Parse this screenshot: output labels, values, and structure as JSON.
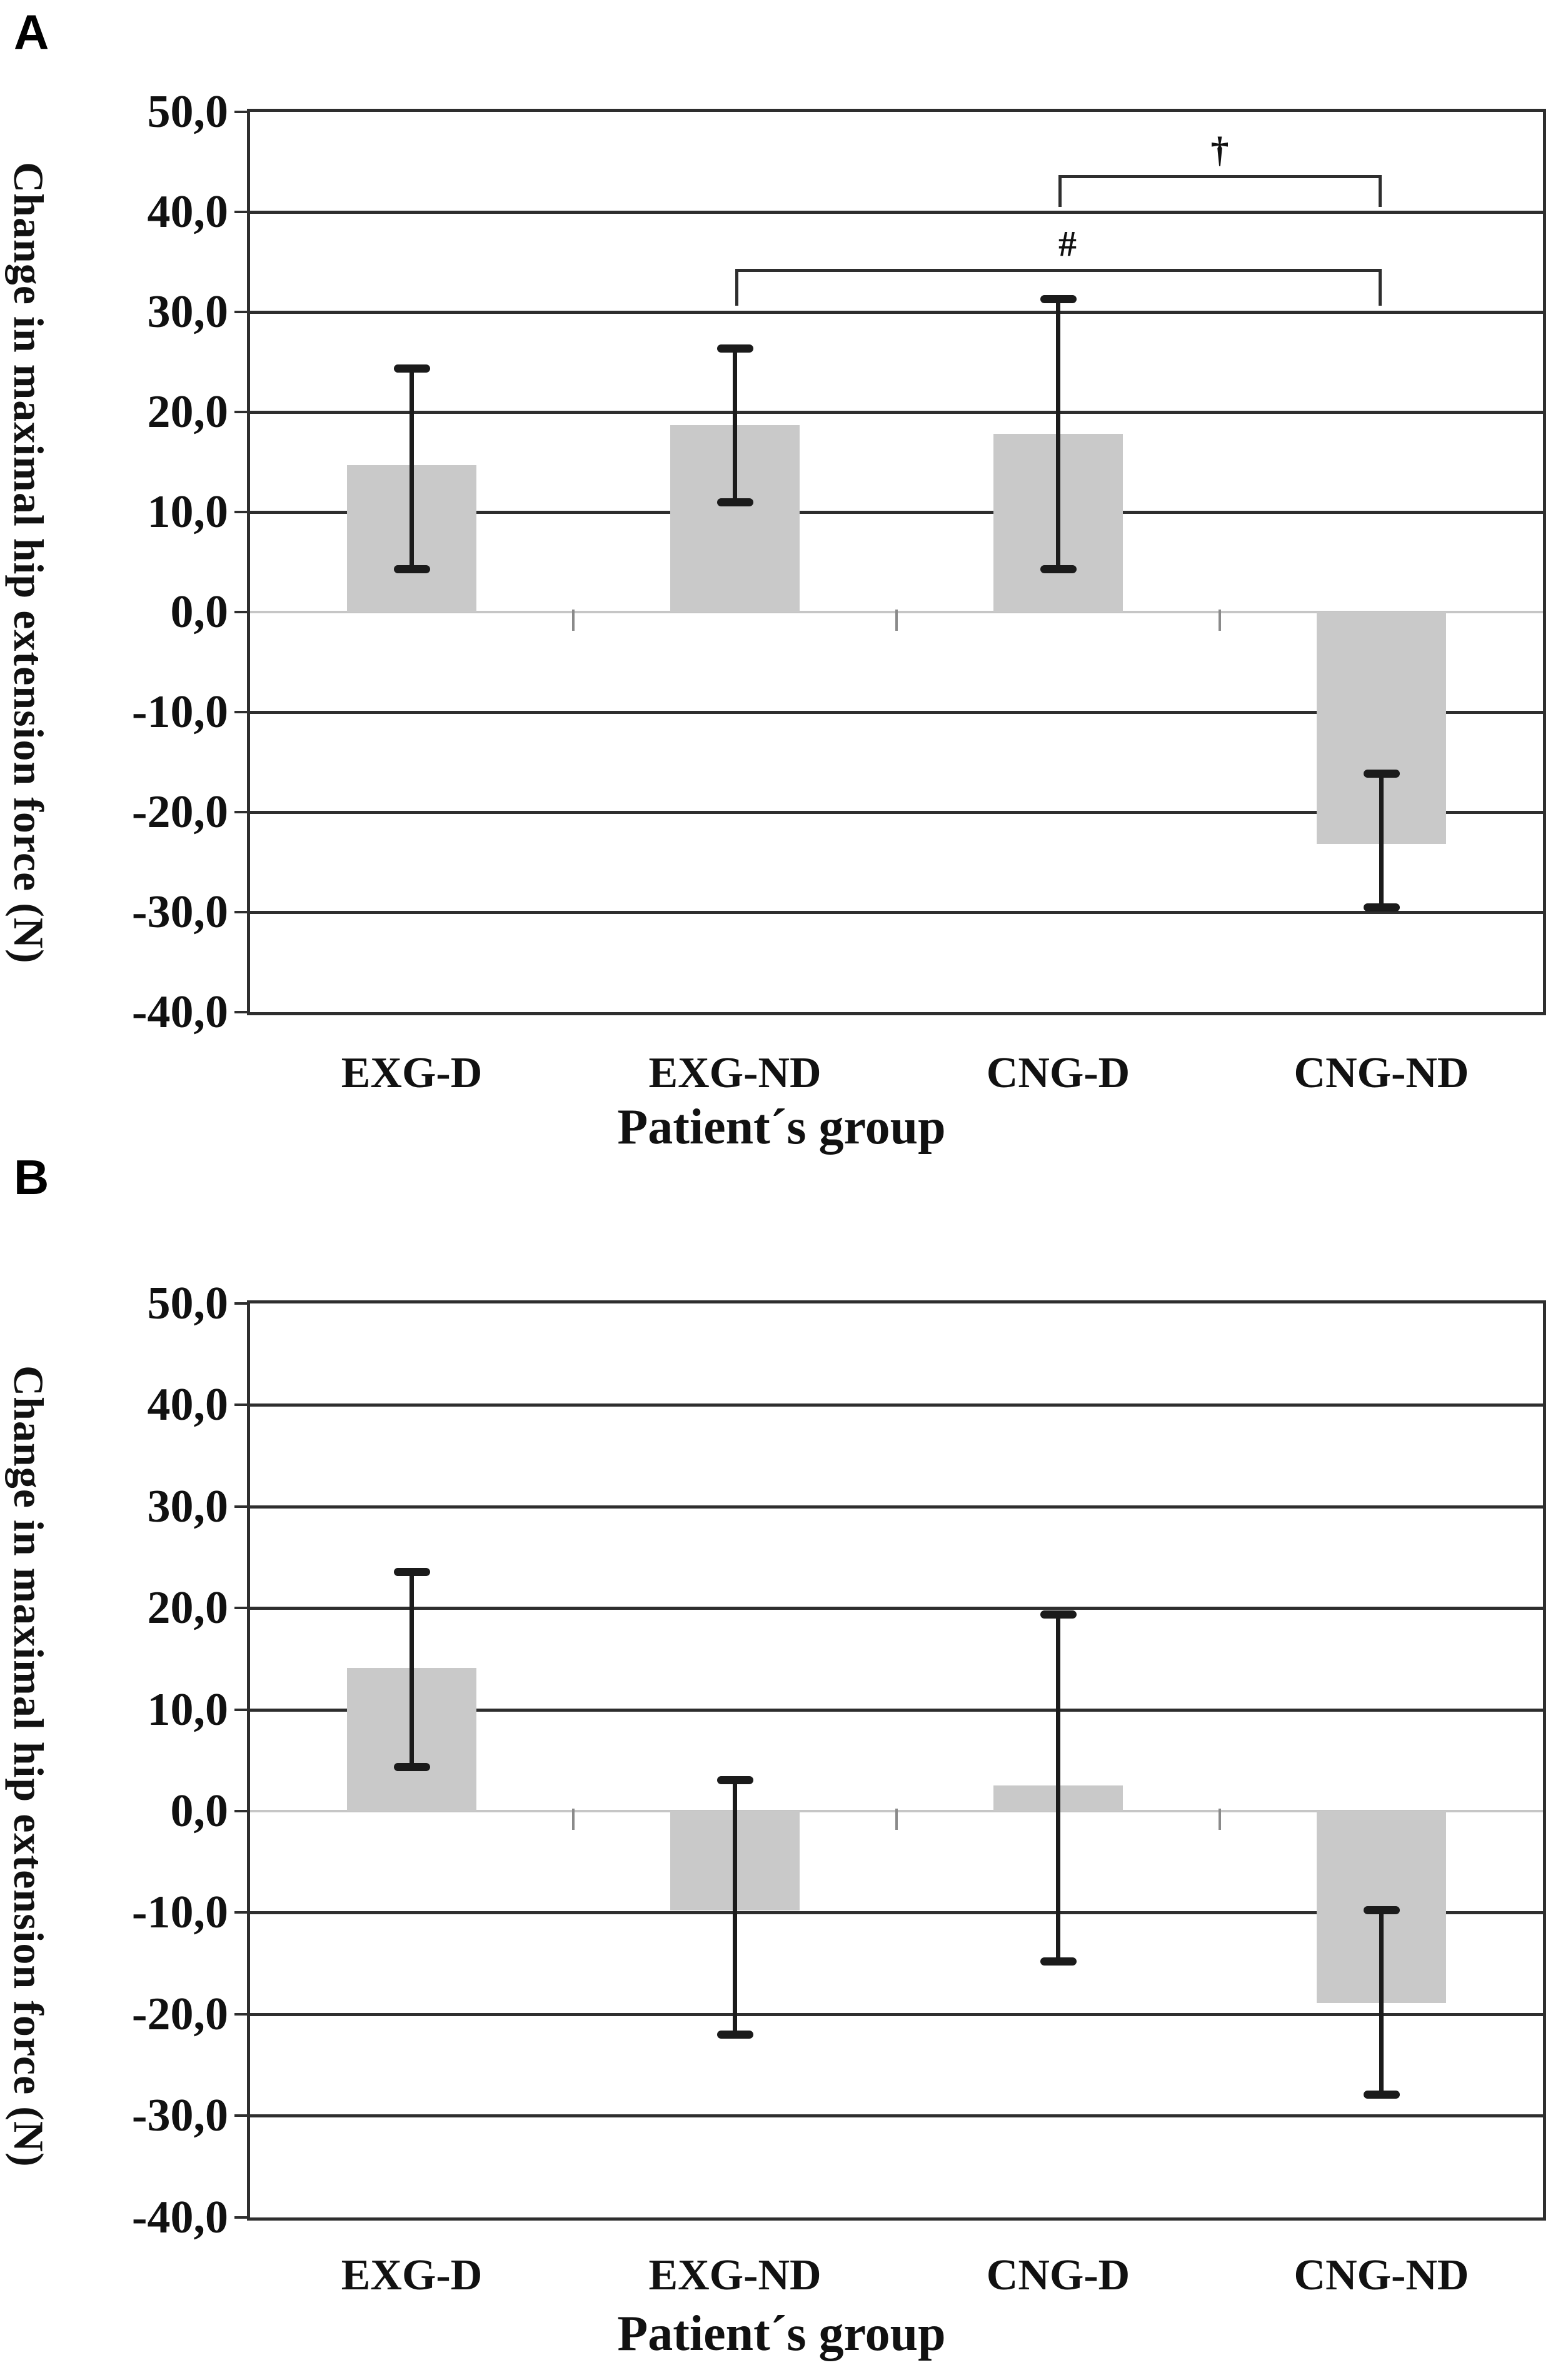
{
  "figure": {
    "background": "#ffffff",
    "bar_color": "#c9c9c9",
    "gridline_color": "#2e2e2e",
    "zero_line_color": "#c6c6c6",
    "error_bar_color": "#1b1b1b"
  },
  "chart_data": [
    {
      "type": "bar",
      "panel_label": "A",
      "title": "",
      "xlabel": "Patient´s group",
      "ylabel": "Change in maximal hip extension force (N)",
      "ylim": [
        -40,
        50
      ],
      "ytick_step": 10,
      "yticks": [
        "50,0",
        "40,0",
        "30,0",
        "20,0",
        "10,0",
        "0,0",
        "-10,0",
        "-20,0",
        "-30,0",
        "-40,0"
      ],
      "grid": true,
      "legend": "none",
      "categories": [
        "EXG-D",
        "EXG-ND",
        "CNG-D",
        "CNG-ND"
      ],
      "values": [
        14.7,
        18.7,
        17.8,
        -23.2
      ],
      "error_high": [
        24.4,
        26.4,
        31.3,
        -16.1
      ],
      "error_low": [
        4.3,
        11.0,
        4.3,
        -29.5
      ],
      "significance": [
        {
          "symbol": "#",
          "from": 1,
          "to": 3,
          "bar_value": 34.3,
          "tick_drop": 3.7,
          "symbol_dx": 15
        },
        {
          "symbol": "†",
          "from": 2,
          "to": 3,
          "bar_value": 43.7,
          "tick_drop": 3.2,
          "symbol_dx": 0
        }
      ]
    },
    {
      "type": "bar",
      "panel_label": "B",
      "title": "",
      "xlabel": "Patient´s group",
      "ylabel": "Change in maximal hip extension force (N)",
      "ylim": [
        -40,
        50
      ],
      "ytick_step": 10,
      "yticks": [
        "50,0",
        "40,0",
        "30,0",
        "20,0",
        "10,0",
        "0,0",
        "-10,0",
        "-20,0",
        "-30,0",
        "-40,0"
      ],
      "grid": true,
      "legend": "none",
      "categories": [
        "EXG-D",
        "EXG-ND",
        "CNG-D",
        "CNG-ND"
      ],
      "values": [
        14.1,
        -9.8,
        2.5,
        -18.9
      ],
      "error_high": [
        23.6,
        3.1,
        19.4,
        -9.7
      ],
      "error_low": [
        4.4,
        -22.0,
        -14.8,
        -27.9
      ],
      "significance": []
    }
  ]
}
